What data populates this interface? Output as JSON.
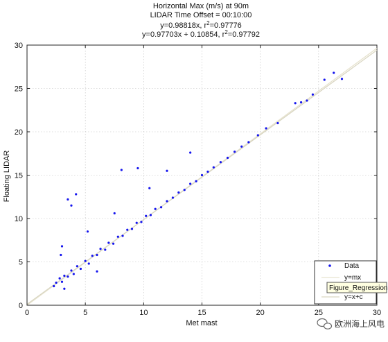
{
  "chart_data": {
    "type": "scatter",
    "title_lines": [
      "Horizontal Max (m/s) at 90m",
      "LIDAR Time Offset = 00:10:00",
      "y=0.98818x, r",
      "y=0.97703x + 0.10854, r"
    ],
    "title_r2_values": [
      "=0.97776",
      "=0.97792"
    ],
    "xlabel": "Met mast",
    "ylabel": "Floating LIDAR",
    "xlim": [
      0,
      30
    ],
    "ylim": [
      0,
      30
    ],
    "xticks": [
      "0",
      "5",
      "10",
      "15",
      "20",
      "25",
      "30"
    ],
    "yticks": [
      "0",
      "5",
      "10",
      "15",
      "20",
      "25",
      "30"
    ],
    "grid": true,
    "legend_position": "bottom-right",
    "legend_entries": [
      "Data",
      "y=mx",
      "y=x+c"
    ],
    "tooltip_text": "Figure_Regressions",
    "fits": {
      "y_mx": {
        "slope": 0.98818,
        "intercept": 0
      },
      "y_x_c": {
        "slope": 0.97703,
        "intercept": 0.10854
      }
    },
    "series": [
      {
        "name": "Data",
        "color": "#1515ee",
        "points": [
          [
            2.3,
            2.2
          ],
          [
            2.5,
            2.6
          ],
          [
            2.8,
            3.1
          ],
          [
            3.0,
            2.7
          ],
          [
            3.2,
            3.4
          ],
          [
            3.5,
            3.3
          ],
          [
            3.8,
            4.0
          ],
          [
            4.0,
            3.6
          ],
          [
            4.3,
            4.5
          ],
          [
            4.6,
            4.2
          ],
          [
            5.0,
            5.1
          ],
          [
            5.3,
            4.8
          ],
          [
            5.6,
            5.7
          ],
          [
            6.0,
            5.8
          ],
          [
            6.3,
            6.5
          ],
          [
            6.7,
            6.4
          ],
          [
            7.0,
            7.2
          ],
          [
            7.4,
            7.1
          ],
          [
            7.8,
            7.9
          ],
          [
            8.2,
            8.0
          ],
          [
            8.6,
            8.7
          ],
          [
            9.0,
            8.8
          ],
          [
            9.4,
            9.5
          ],
          [
            9.8,
            9.6
          ],
          [
            10.2,
            10.3
          ],
          [
            10.6,
            10.4
          ],
          [
            11.0,
            11.1
          ],
          [
            11.5,
            11.3
          ],
          [
            12.0,
            12.0
          ],
          [
            12.5,
            12.4
          ],
          [
            13.0,
            13.0
          ],
          [
            13.5,
            13.3
          ],
          [
            14.0,
            14.0
          ],
          [
            14.5,
            14.3
          ],
          [
            15.0,
            15.0
          ],
          [
            15.5,
            15.4
          ],
          [
            16.0,
            15.9
          ],
          [
            16.6,
            16.5
          ],
          [
            17.2,
            17.0
          ],
          [
            17.8,
            17.7
          ],
          [
            18.4,
            18.3
          ],
          [
            19.0,
            18.8
          ],
          [
            19.8,
            19.6
          ],
          [
            20.5,
            20.4
          ],
          [
            21.5,
            21.0
          ],
          [
            23.0,
            23.3
          ],
          [
            23.5,
            23.4
          ],
          [
            24.0,
            23.6
          ],
          [
            24.5,
            24.3
          ],
          [
            25.5,
            26.0
          ],
          [
            26.3,
            26.8
          ],
          [
            27.0,
            26.1
          ],
          [
            3.0,
            6.8
          ],
          [
            3.8,
            11.5
          ],
          [
            3.5,
            12.2
          ],
          [
            5.2,
            8.5
          ],
          [
            8.1,
            15.6
          ],
          [
            9.5,
            15.8
          ],
          [
            3.2,
            1.9
          ],
          [
            6.0,
            3.9
          ],
          [
            10.5,
            13.5
          ],
          [
            12.0,
            15.5
          ],
          [
            14.0,
            17.6
          ],
          [
            2.9,
            5.8
          ],
          [
            4.2,
            12.8
          ],
          [
            7.5,
            10.6
          ]
        ]
      }
    ]
  },
  "watermark": {
    "text": "欧洲海上风电",
    "icon": "wechat-icon"
  }
}
